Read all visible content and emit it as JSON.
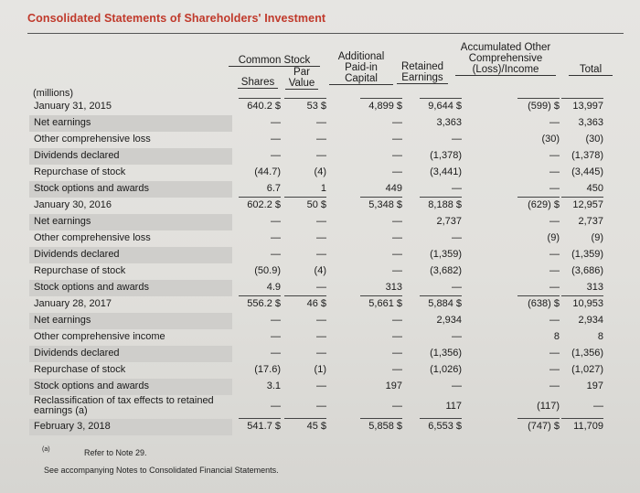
{
  "title": "Consolidated Statements of Shareholders' Investment",
  "headers": {
    "common_stock": "Common Stock",
    "shares": "Shares",
    "par_value": "Par Value",
    "apic": "Additional Paid-in Capital",
    "retained": "Retained Earnings",
    "aoci": "Accumulated Other Comprehensive (Loss)/Income",
    "total": "Total",
    "millions": "(millions)"
  },
  "rows": [
    {
      "label": "January 31, 2015",
      "shares": "640.2 $",
      "par": "53 $",
      "apic": "4,899 $",
      "re": "9,644 $",
      "aoci": "(599) $",
      "total": "13,997",
      "bal": true
    },
    {
      "label": "Net earnings",
      "shares": "—",
      "par": "—",
      "apic": "—",
      "re": "3,363",
      "aoci": "—",
      "total": "3,363"
    },
    {
      "label": "Other comprehensive loss",
      "shares": "—",
      "par": "—",
      "apic": "—",
      "re": "—",
      "aoci": "(30)",
      "total": "(30)"
    },
    {
      "label": "Dividends declared",
      "shares": "—",
      "par": "—",
      "apic": "—",
      "re": "(1,378)",
      "aoci": "—",
      "total": "(1,378)"
    },
    {
      "label": "Repurchase of stock",
      "shares": "(44.7)",
      "par": "(4)",
      "apic": "—",
      "re": "(3,441)",
      "aoci": "—",
      "total": "(3,445)"
    },
    {
      "label": "Stock options and awards",
      "shares": "6.7",
      "par": "1",
      "apic": "449",
      "re": "—",
      "aoci": "—",
      "total": "450"
    },
    {
      "label": "January 30, 2016",
      "shares": "602.2 $",
      "par": "50 $",
      "apic": "5,348 $",
      "re": "8,188 $",
      "aoci": "(629) $",
      "total": "12,957",
      "bal": true
    },
    {
      "label": "Net earnings",
      "shares": "—",
      "par": "—",
      "apic": "—",
      "re": "2,737",
      "aoci": "—",
      "total": "2,737"
    },
    {
      "label": "Other comprehensive loss",
      "shares": "—",
      "par": "—",
      "apic": "—",
      "re": "—",
      "aoci": "(9)",
      "total": "(9)"
    },
    {
      "label": "Dividends declared",
      "shares": "—",
      "par": "—",
      "apic": "—",
      "re": "(1,359)",
      "aoci": "—",
      "total": "(1,359)"
    },
    {
      "label": "Repurchase of stock",
      "shares": "(50.9)",
      "par": "(4)",
      "apic": "—",
      "re": "(3,682)",
      "aoci": "—",
      "total": "(3,686)"
    },
    {
      "label": "Stock options and awards",
      "shares": "4.9",
      "par": "—",
      "apic": "313",
      "re": "—",
      "aoci": "—",
      "total": "313"
    },
    {
      "label": "January 28, 2017",
      "shares": "556.2 $",
      "par": "46 $",
      "apic": "5,661 $",
      "re": "5,884 $",
      "aoci": "(638) $",
      "total": "10,953",
      "bal": true
    },
    {
      "label": "Net earnings",
      "shares": "—",
      "par": "—",
      "apic": "—",
      "re": "2,934",
      "aoci": "—",
      "total": "2,934"
    },
    {
      "label": "Other comprehensive income",
      "shares": "—",
      "par": "—",
      "apic": "—",
      "re": "—",
      "aoci": "8",
      "total": "8"
    },
    {
      "label": "Dividends declared",
      "shares": "—",
      "par": "—",
      "apic": "—",
      "re": "(1,356)",
      "aoci": "—",
      "total": "(1,356)"
    },
    {
      "label": "Repurchase of stock",
      "shares": "(17.6)",
      "par": "(1)",
      "apic": "—",
      "re": "(1,026)",
      "aoci": "—",
      "total": "(1,027)"
    },
    {
      "label": "Stock options and awards",
      "shares": "3.1",
      "par": "—",
      "apic": "197",
      "re": "—",
      "aoci": "—",
      "total": "197"
    },
    {
      "label": "Reclassification of tax effects to retained earnings (a)",
      "shares": "—",
      "par": "—",
      "apic": "—",
      "re": "117",
      "aoci": "(117)",
      "total": "—"
    },
    {
      "label": "February 3, 2018",
      "shares": "541.7 $",
      "par": "45 $",
      "apic": "5,858 $",
      "re": "6,553 $",
      "aoci": "(747) $",
      "total": "11,709",
      "bal": true
    }
  ],
  "footnote_mark": "(a)",
  "footnote": "Refer to Note 29.",
  "note": "See accompanying Notes to Consolidated Financial Statements."
}
